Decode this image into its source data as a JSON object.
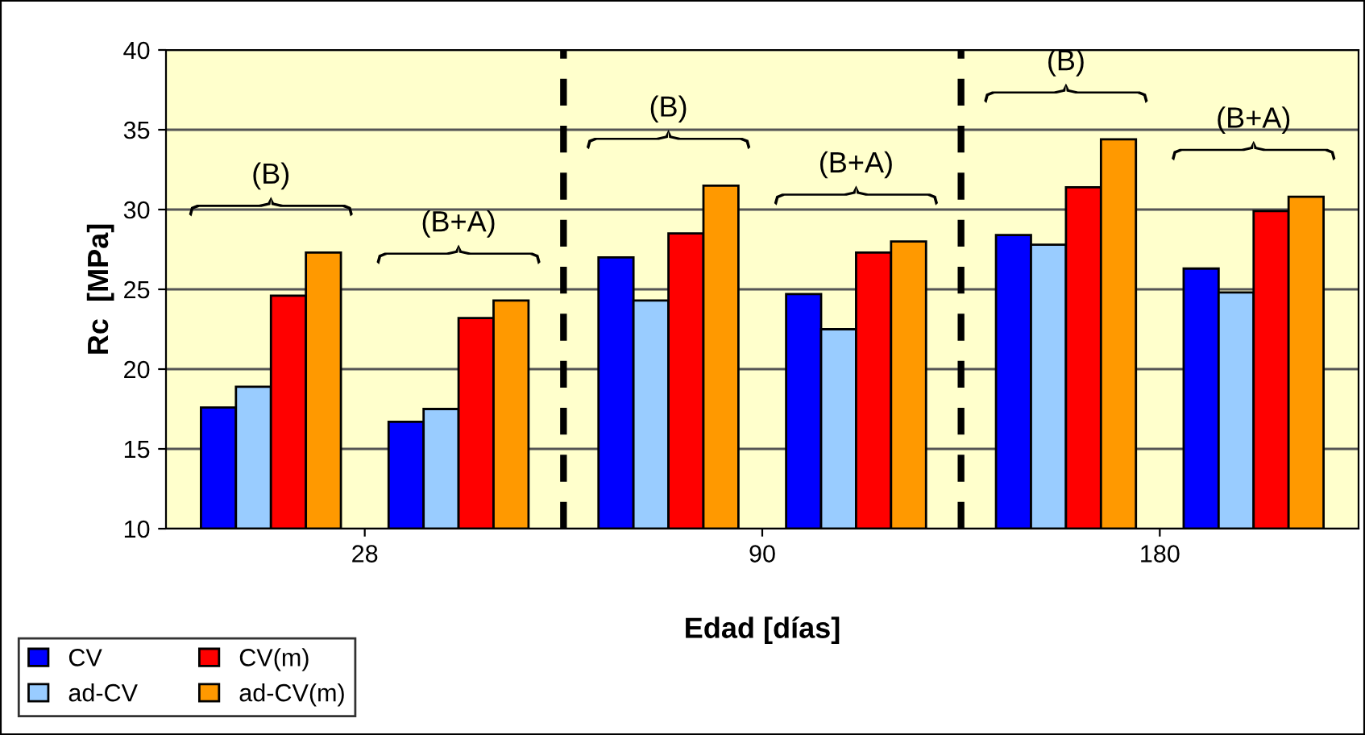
{
  "chart_data": {
    "type": "bar",
    "categories": [
      "28",
      "90",
      "180"
    ],
    "series": [
      {
        "name": "CV",
        "color": "#0000ff",
        "values": [
          17.6,
          27.0,
          28.4
        ]
      },
      {
        "name": "ad-CV",
        "color": "#99ccff",
        "values": [
          18.9,
          24.3,
          27.8
        ]
      },
      {
        "name": "CV(m)",
        "color": "#ff0000",
        "values": [
          24.6,
          28.5,
          31.4
        ]
      },
      {
        "name": "ad-CV(m)",
        "color": "#ff9900",
        "values": [
          27.3,
          31.5,
          34.4
        ]
      },
      {
        "color": "#0000ff",
        "values": [
          16.7,
          24.7,
          26.3
        ]
      },
      {
        "color": "#99ccff",
        "values": [
          17.5,
          22.5,
          24.8
        ]
      },
      {
        "color": "#ff0000",
        "values": [
          23.2,
          27.3,
          29.9
        ]
      },
      {
        "color": "#ff9900",
        "values": [
          24.3,
          28.0,
          30.8
        ]
      }
    ],
    "ylim": [
      10,
      40
    ],
    "yticks": [
      10,
      15,
      20,
      25,
      30,
      35,
      40
    ],
    "grid": "y",
    "ylabel": "Rc  [MPa]",
    "xlabel": "Edad [días]",
    "annotations": [
      "(B)",
      "(B+A)",
      "(B)",
      "(B+A)",
      "(B)",
      "(B+A)"
    ],
    "legend": "bottom left"
  }
}
